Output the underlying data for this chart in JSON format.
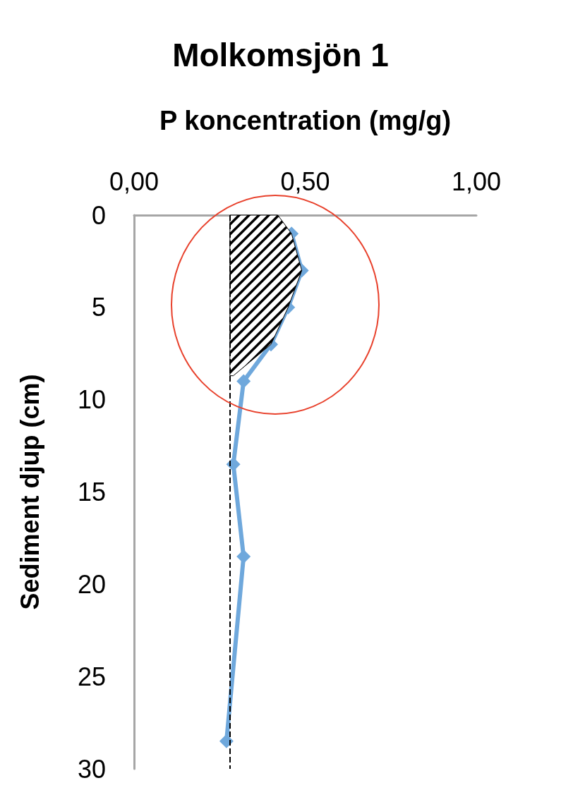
{
  "chart_data": {
    "type": "line",
    "title": "Molkomsjön 1",
    "xlabel": "P koncentration (mg/g)",
    "ylabel": "Sediment djup (cm)",
    "xlim": [
      0,
      1
    ],
    "xticks": [
      {
        "value": 0,
        "label": "0,00"
      },
      {
        "value": 0.5,
        "label": "0,50"
      },
      {
        "value": 1,
        "label": "1,00"
      }
    ],
    "ylim": [
      30,
      0
    ],
    "yticks": [
      0,
      5,
      10,
      15,
      20,
      25,
      30
    ],
    "grid": false,
    "line_style": "solid",
    "series": [
      {
        "type": "area",
        "color": "#000000",
        "x": [
          0.28,
          0.42,
          0.46,
          0.49,
          0.45,
          0.4,
          0.29,
          0.28
        ],
        "values": [
          0,
          0,
          1,
          3,
          5,
          7,
          8.7,
          8.7
        ]
      },
      {
        "marker": "diamond",
        "color": "#6fa8dc",
        "x": [
          0.46,
          0.49,
          0.45,
          0.4,
          0.32,
          0.29,
          0.32,
          0.27
        ],
        "values": [
          1,
          3,
          5,
          7,
          9,
          13.5,
          18.5,
          28.5
        ]
      }
    ],
    "ref_lines": [
      {
        "axis": "x",
        "value": 0.28,
        "color": "#000000",
        "line_style": "dashed"
      }
    ]
  }
}
